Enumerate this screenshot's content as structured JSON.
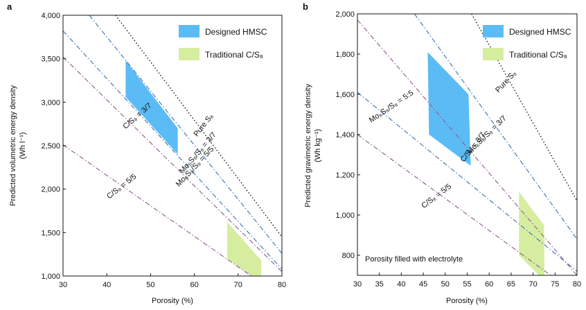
{
  "chart_data": [
    {
      "type": "line",
      "panel_label": "a",
      "xlabel": "Porosity (%)",
      "ylabel_line1": "Predicted volumetric energy density",
      "ylabel_line2": "(Wh l⁻¹)",
      "xlim": [
        30,
        80
      ],
      "ylim": [
        1000,
        4000
      ],
      "xticks": [
        30,
        40,
        50,
        60,
        70,
        80
      ],
      "yticks": [
        1000,
        1500,
        2000,
        2500,
        3000,
        3500,
        4000
      ],
      "ytick_labels": [
        "1,000",
        "1,500",
        "2,000",
        "2,500",
        "3,000",
        "3,500",
        "4,000"
      ],
      "legend": [
        {
          "label": "Designed HMSC",
          "color": "#5bbcf5"
        },
        {
          "label": "Traditional C/S₈",
          "color": "#d6eda0"
        }
      ],
      "series": [
        {
          "name": "Pure S₈",
          "style": "dotted",
          "color": "#111111",
          "points": [
            [
              42,
              4000
            ],
            [
              80,
              1450
            ]
          ],
          "label": "Pure S₈",
          "label_at": [
            62.5,
            2720
          ]
        },
        {
          "name": "Mo₆S₈/S₈ = 3/7",
          "style": "dashdot",
          "color": "#3a6fb5",
          "points": [
            [
              36,
              4000
            ],
            [
              80,
              1260
            ]
          ],
          "label": "Mo₆S₈/S₈ = 3/7",
          "label_at": [
            61.2,
            2400
          ]
        },
        {
          "name": "Mo₆S₈/S₈ = 5/5",
          "style": "dashdot",
          "color": "#3a6fb5",
          "points": [
            [
              30,
              3820
            ],
            [
              80,
              1080
            ]
          ],
          "label": "Mo₆S₈/S₈ = 5/5",
          "label_at": [
            60.5,
            2240
          ]
        },
        {
          "name": "C/S₈ = 3/7",
          "style": "dashdot",
          "color": "#8a5a8c",
          "points": [
            [
              30,
              3520
            ],
            [
              80,
              1050
            ]
          ],
          "label": "C/S₈ = 3/7",
          "label_at": [
            47.3,
            2820
          ]
        },
        {
          "name": "C/S₈ = 5/5",
          "style": "dashdot",
          "color": "#8a5a8c",
          "points": [
            [
              30,
              2510
            ],
            [
              73,
              1000
            ]
          ],
          "label": "C/S₈ = 5/5",
          "label_at": [
            43.7,
            2010
          ]
        }
      ],
      "regions": [
        {
          "name": "Designed HMSC",
          "color": "#5bbcf5",
          "points": [
            [
              44.3,
              3480
            ],
            [
              56.2,
              2700
            ],
            [
              56.2,
              2400
            ],
            [
              44.3,
              3060
            ]
          ]
        },
        {
          "name": "Traditional C/S₈",
          "color": "#d6eda0",
          "points": [
            [
              67.5,
              1620
            ],
            [
              75.3,
              1180
            ],
            [
              75.3,
              1000
            ],
            [
              73.0,
              1000
            ],
            [
              67.5,
              1200
            ]
          ]
        }
      ]
    },
    {
      "type": "line",
      "panel_label": "b",
      "xlabel": "Porosity (%)",
      "ylabel_line1": "Predicted gravimetric energy density",
      "ylabel_line2": "(Wh kg⁻¹)",
      "xlim": [
        30,
        80
      ],
      "ylim": [
        700,
        2000
      ],
      "xticks": [
        30,
        35,
        40,
        45,
        50,
        55,
        60,
        65,
        70,
        75,
        80
      ],
      "yticks": [
        800,
        1000,
        1200,
        1400,
        1600,
        1800,
        2000
      ],
      "ytick_labels": [
        "800",
        "1,000",
        "1,200",
        "1,400",
        "1,600",
        "1,800",
        "2,000"
      ],
      "annotation": "Porosity filled with electrolyte",
      "legend": [
        {
          "label": "Designed HMSC",
          "color": "#5bbcf5"
        },
        {
          "label": "Traditional C/S₈",
          "color": "#d6eda0"
        }
      ],
      "series": [
        {
          "name": "Pure S₈",
          "style": "dotted",
          "color": "#111111",
          "points": [
            [
              56,
              2000
            ],
            [
              80,
              1070
            ]
          ],
          "label": "Pure S₈",
          "label_at": [
            64.2,
            1655
          ]
        },
        {
          "name": "Mo₆S₈/S₈ = 3/7",
          "style": "dashdot",
          "color": "#3a6fb5",
          "points": [
            [
              43,
              2000
            ],
            [
              80,
              880
            ]
          ],
          "label": "Mo₆S₈/S₈ = 3/7",
          "label_at": [
            59.8,
            1390
          ]
        },
        {
          "name": "Mo₆S₈/S₈ = 5:5",
          "style": "dashdot",
          "color": "#3a6fb5",
          "points": [
            [
              30,
              1610
            ],
            [
              80,
              720
            ]
          ],
          "label": "Mo₆S₈/S₈ = 5:5",
          "label_at": [
            38.0,
            1530
          ]
        },
        {
          "name": "C/S₈ = 3/7",
          "style": "dashdot",
          "color": "#8a5a8c",
          "points": [
            [
              30,
              1970
            ],
            [
              80,
              700
            ]
          ],
          "label": "C/S₈ = 3/7",
          "label_at": [
            56.7,
            1330
          ]
        },
        {
          "name": "C/S₈ = 5/5",
          "style": "dashdot",
          "color": "#8a5a8c",
          "points": [
            [
              30,
              1400
            ],
            [
              74,
              700
            ]
          ],
          "label": "C/S₈ = 5/5",
          "label_at": [
            48.3,
            1085
          ]
        }
      ],
      "regions": [
        {
          "name": "Designed HMSC",
          "color": "#5bbcf5",
          "points": [
            [
              46.0,
              1810
            ],
            [
              55.3,
              1600
            ],
            [
              55.8,
              1245
            ],
            [
              46.3,
              1400
            ]
          ]
        },
        {
          "name": "Traditional C/S₈",
          "color": "#d6eda0",
          "points": [
            [
              66.8,
              1115
            ],
            [
              72.5,
              950
            ],
            [
              72.6,
              700
            ],
            [
              71.3,
              700
            ],
            [
              66.8,
              800
            ]
          ]
        }
      ]
    }
  ]
}
